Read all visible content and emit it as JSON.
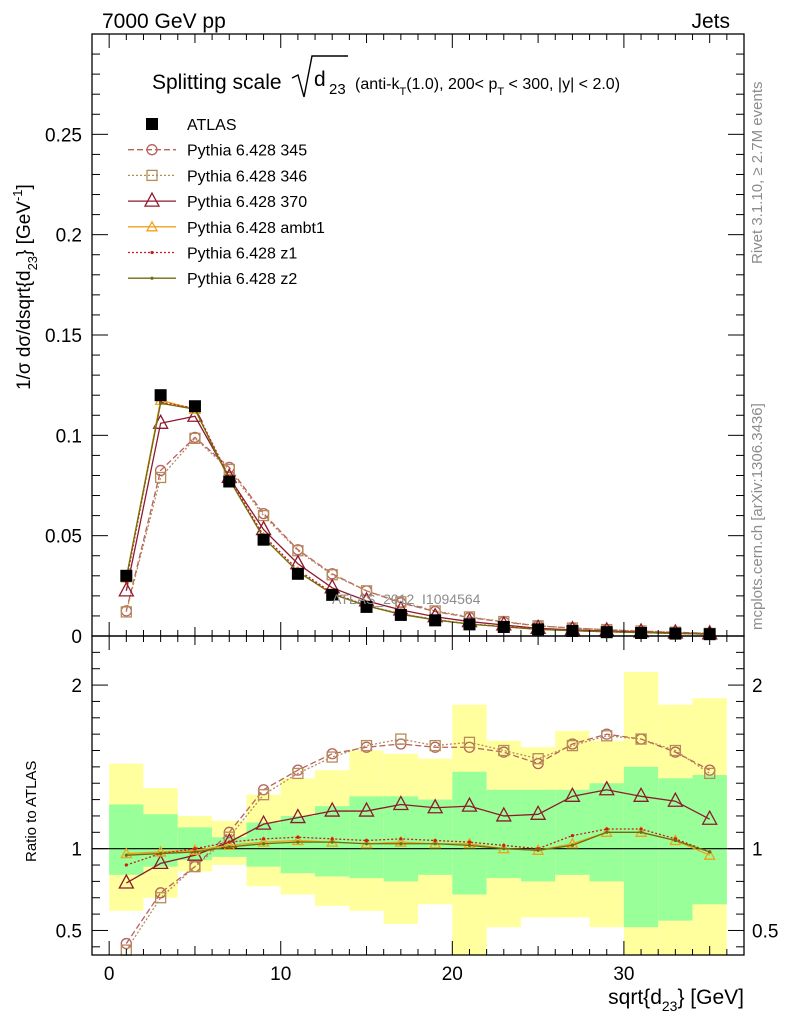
{
  "header": {
    "left": "7000 GeV pp",
    "right": "Jets"
  },
  "side_labels": {
    "rivet": "Rivet 3.1.10, ≥ 2.7M events",
    "mcplots": "mcplots.cern.ch [arXiv:1306.3436]"
  },
  "watermark": "ATLAS_2012_I1094564",
  "title": {
    "prefix": "Splitting scale",
    "radicand": "d",
    "radicand_sub": "23",
    "cuts_a": "(anti-k",
    "cuts_a_sub": "T",
    "cuts_b": "(1.0), 200< p",
    "cuts_b_sub": "T",
    "cuts_c": " < 300, |y| < 2.0)"
  },
  "axes": {
    "ylabel_main": "1/σ dσ/dsqrt{d",
    "ylabel_main_sub": "23",
    "ylabel_main_end": "} [GeV",
    "ylabel_main_sup": "-1",
    "ylabel_main_close": "]",
    "ylabel_ratio": "Ratio to ATLAS",
    "xlabel": "sqrt{d",
    "xlabel_sub": "23",
    "xlabel_end": "} [GeV]"
  },
  "colors": {
    "atlas": "#000000",
    "p345": "#b8615f",
    "p346": "#b58c58",
    "p370": "#8e1a2e",
    "ambt1": "#f0a21c",
    "z1": "#c81e1e",
    "z2": "#6e6e10",
    "band_stat": "#99ff99",
    "band_tot": "#ffff9e"
  },
  "chart_data": {
    "type": "line",
    "bin_edges": [
      0,
      2,
      4,
      6,
      8,
      10,
      12,
      14,
      16,
      18,
      20,
      22,
      24,
      26,
      28,
      30,
      32,
      34,
      36
    ],
    "x": [
      1,
      3,
      5,
      7,
      9,
      11,
      13,
      15,
      17,
      19,
      21,
      23,
      25,
      27,
      29,
      31,
      33,
      35
    ],
    "main": {
      "xlim": [
        -1,
        37
      ],
      "ylim": [
        0,
        0.3
      ],
      "yticks": [
        0,
        0.05,
        0.1,
        0.15,
        0.2,
        0.25
      ],
      "ytick_labels": [
        "0",
        "0.05",
        "0.1",
        "0.15",
        "0.2",
        "0.25"
      ]
    },
    "ratio": {
      "ylim": [
        0.35,
        2.3
      ],
      "yticks": [
        0.5,
        1,
        2
      ],
      "ytick_labels": [
        "0.5",
        "1",
        "2"
      ]
    },
    "xticks": [
      0,
      10,
      20,
      30
    ],
    "xtick_labels": [
      "0",
      "10",
      "20",
      "30"
    ],
    "series": [
      {
        "name": "ATLAS",
        "marker": "square-filled",
        "line": "none",
        "colorKey": "atlas",
        "values": [
          0.03,
          0.12,
          0.1145,
          0.077,
          0.048,
          0.031,
          0.0205,
          0.0145,
          0.0105,
          0.0078,
          0.0058,
          0.0045,
          0.0033,
          0.0025,
          0.0019,
          0.0015,
          0.0012,
          0.0009
        ],
        "ratio": [
          1,
          1,
          1,
          1,
          1,
          1,
          1,
          1,
          1,
          1,
          1,
          1,
          1,
          1,
          1,
          1,
          1,
          1
        ]
      },
      {
        "name": "Pythia 6.428 345",
        "marker": "circle-open",
        "line": "dashed",
        "colorKey": "p345",
        "values": [
          0.0125,
          0.0825,
          0.099,
          0.084,
          0.061,
          0.043,
          0.031,
          0.0225,
          0.0165,
          0.0122,
          0.0092,
          0.007,
          0.005,
          0.004,
          0.0031,
          0.0024,
          0.0018,
          0.0013
        ],
        "ratio": [
          0.42,
          0.73,
          0.89,
          1.1,
          1.36,
          1.48,
          1.58,
          1.62,
          1.64,
          1.62,
          1.62,
          1.59,
          1.52,
          1.64,
          1.7,
          1.67,
          1.59,
          1.48
        ]
      },
      {
        "name": "Pythia 6.428 346",
        "marker": "square-open",
        "line": "dotted",
        "colorKey": "p346",
        "values": [
          0.012,
          0.079,
          0.0985,
          0.083,
          0.06,
          0.0425,
          0.0305,
          0.0225,
          0.017,
          0.0125,
          0.0095,
          0.0072,
          0.0051,
          0.004,
          0.0032,
          0.0025,
          0.0019,
          0.0013
        ],
        "ratio": [
          0.38,
          0.7,
          0.89,
          1.07,
          1.33,
          1.46,
          1.56,
          1.63,
          1.67,
          1.63,
          1.65,
          1.6,
          1.55,
          1.63,
          1.69,
          1.67,
          1.6,
          1.46
        ]
      },
      {
        "name": "Pythia 6.428 370",
        "marker": "triangle-open",
        "line": "solid",
        "colorKey": "p370",
        "values": [
          0.0225,
          0.106,
          0.1095,
          0.079,
          0.053,
          0.036,
          0.024,
          0.0175,
          0.013,
          0.0096,
          0.0072,
          0.0055,
          0.0038,
          0.0031,
          0.0025,
          0.002,
          0.0015,
          0.0011
        ],
        "ratio": [
          0.79,
          0.91,
          0.96,
          1.04,
          1.15,
          1.19,
          1.23,
          1.23,
          1.27,
          1.25,
          1.26,
          1.2,
          1.21,
          1.32,
          1.36,
          1.32,
          1.29,
          1.18
        ]
      },
      {
        "name": "Pythia 6.428 ambt1",
        "marker": "triangle-open-small",
        "line": "solid",
        "colorKey": "ambt1",
        "values": [
          0.029,
          0.1175,
          0.113,
          0.078,
          0.049,
          0.032,
          0.021,
          0.015,
          0.011,
          0.0081,
          0.0059,
          0.0046,
          0.0033,
          0.0026,
          0.0021,
          0.0017,
          0.0013,
          0.0009
        ],
        "ratio": [
          0.97,
          0.98,
          0.99,
          1.02,
          1.04,
          1.05,
          1.04,
          1.03,
          1.04,
          1.03,
          1.03,
          1.0,
          0.99,
          1.03,
          1.1,
          1.1,
          1.05,
          0.96
        ]
      },
      {
        "name": "Pythia 6.428 z1",
        "marker": "dot",
        "line": "dotted",
        "colorKey": "z1",
        "values": [
          0.027,
          0.1165,
          0.1135,
          0.079,
          0.05,
          0.033,
          0.0215,
          0.0152,
          0.011,
          0.0082,
          0.006,
          0.0047,
          0.0034,
          0.0027,
          0.0021,
          0.0017,
          0.0013,
          0.0009
        ],
        "ratio": [
          0.9,
          0.97,
          1.0,
          1.04,
          1.06,
          1.07,
          1.06,
          1.05,
          1.06,
          1.05,
          1.04,
          1.02,
          1.0,
          1.08,
          1.12,
          1.12,
          1.06,
          0.98
        ]
      },
      {
        "name": "Pythia 6.428 z2",
        "marker": "dot",
        "line": "solid",
        "colorKey": "z2",
        "values": [
          0.029,
          0.116,
          0.113,
          0.078,
          0.049,
          0.032,
          0.021,
          0.015,
          0.0108,
          0.008,
          0.0059,
          0.0046,
          0.0033,
          0.0026,
          0.0021,
          0.0017,
          0.0013,
          0.0009
        ],
        "ratio": [
          0.96,
          0.97,
          0.98,
          1.01,
          1.03,
          1.04,
          1.04,
          1.03,
          1.03,
          1.03,
          1.02,
          1.0,
          0.99,
          1.02,
          1.1,
          1.1,
          1.05,
          0.98
        ]
      }
    ],
    "bands": {
      "stat_lo": [
        0.84,
        0.89,
        0.93,
        0.95,
        0.89,
        0.85,
        0.83,
        0.82,
        0.8,
        0.84,
        0.72,
        0.82,
        0.8,
        0.84,
        0.8,
        0.52,
        0.56,
        0.66
      ],
      "stat_hi": [
        1.27,
        1.21,
        1.13,
        1.07,
        1.16,
        1.2,
        1.26,
        1.32,
        1.32,
        1.3,
        1.47,
        1.36,
        1.36,
        1.36,
        1.4,
        1.5,
        1.43,
        1.45
      ],
      "tot_lo": [
        0.62,
        0.7,
        0.86,
        0.9,
        0.77,
        0.72,
        0.65,
        0.62,
        0.54,
        0.66,
        0.2,
        0.52,
        0.58,
        0.58,
        0.52,
        0.2,
        0.2,
        0.2
      ],
      "tot_hi": [
        1.52,
        1.37,
        1.2,
        1.17,
        1.33,
        1.43,
        1.48,
        1.6,
        1.58,
        1.55,
        1.88,
        1.66,
        1.62,
        1.72,
        1.66,
        2.08,
        1.88,
        1.92
      ]
    }
  }
}
